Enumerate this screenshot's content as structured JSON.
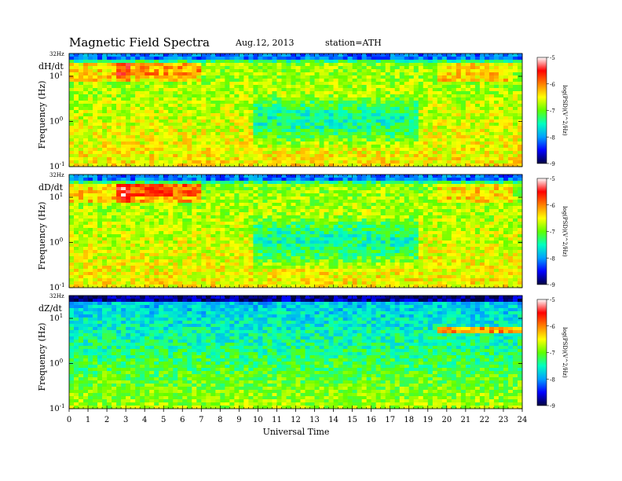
{
  "header": {
    "title": "Magnetic  Field  Spectra",
    "date": "Aug.12, 2013",
    "station": "station=ATH"
  },
  "chart_data": {
    "type": "heatmap",
    "xlabel": "Universal Time",
    "xticks": [
      "0",
      "1",
      "2",
      "3",
      "4",
      "5",
      "6",
      "7",
      "8",
      "9",
      "10",
      "11",
      "12",
      "13",
      "14",
      "15",
      "16",
      "17",
      "18",
      "19",
      "20",
      "21",
      "22",
      "23",
      "24"
    ],
    "xlim": [
      0,
      24
    ],
    "yscale": "log",
    "ylabel": "Frequency (Hz)",
    "top_label": "32Hz",
    "ytick_base": "10",
    "yticks": [
      {
        "value": 10,
        "exp": "1"
      },
      {
        "value": 1,
        "exp": "0"
      },
      {
        "value": 0.1,
        "exp": "-1"
      }
    ],
    "ylim": [
      0.1,
      32
    ],
    "colorbar": {
      "label": "log(PSD)(V^2/Hz)",
      "ticks": [
        "-5",
        "-6",
        "-7",
        "-8",
        "-9"
      ],
      "range": [
        -9,
        -5
      ],
      "colors": [
        "#000040",
        "#0000ff",
        "#00a0ff",
        "#00ffc0",
        "#60ff00",
        "#ffff00",
        "#ff8000",
        "#ff0000",
        "#ffffff"
      ]
    },
    "panels": [
      {
        "component": "dH/dt"
      },
      {
        "component": "dD/dt"
      },
      {
        "component": "dZ/dt"
      }
    ]
  }
}
